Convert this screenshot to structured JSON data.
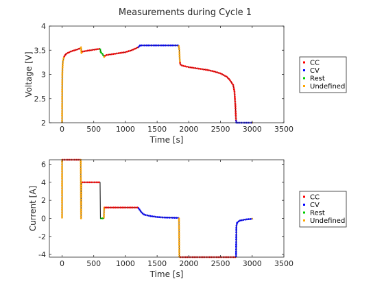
{
  "title": "Measurements during Cycle 1",
  "legend": {
    "entries": [
      {
        "label": "CC",
        "color": "#ff0000"
      },
      {
        "label": "CV",
        "color": "#0000ff"
      },
      {
        "label": "Rest",
        "color": "#00cc00"
      },
      {
        "label": "Undefined",
        "color": "#ffa500"
      }
    ],
    "placement": "right"
  },
  "chart_data": [
    {
      "type": "line",
      "title": "Measurements during Cycle 1",
      "xlabel": "Time [s]",
      "ylabel": "Voltage [V]",
      "xlim": [
        -200,
        3500
      ],
      "ylim": [
        2,
        4
      ],
      "xticks": [
        "0",
        "500",
        "1000",
        "1500",
        "2000",
        "2500",
        "3000",
        "3500"
      ],
      "yticks": [
        "2",
        "2.5",
        "3",
        "3.5",
        "4"
      ],
      "grid": false,
      "legend_placement": "right",
      "trace": {
        "name": "Voltage",
        "color": "#000000",
        "x": [
          0,
          1,
          2,
          4,
          8,
          15,
          30,
          60,
          100,
          150,
          200,
          250,
          290,
          300,
          305,
          315,
          400,
          500,
          600,
          610,
          640,
          660,
          665,
          670,
          700,
          800,
          900,
          1000,
          1100,
          1200,
          1220,
          1230,
          1245,
          1300,
          1400,
          1500,
          1600,
          1700,
          1800,
          1840,
          1850,
          1855,
          1860,
          1870,
          1900,
          2000,
          2100,
          2200,
          2300,
          2400,
          2500,
          2600,
          2650,
          2700,
          2720,
          2735,
          2745,
          2750,
          2800,
          2900,
          3000,
          3010
        ],
        "y": [
          2.0,
          2.3,
          2.7,
          3.0,
          3.15,
          3.28,
          3.36,
          3.42,
          3.45,
          3.48,
          3.5,
          3.52,
          3.54,
          3.56,
          3.44,
          3.47,
          3.49,
          3.51,
          3.53,
          3.46,
          3.42,
          3.37,
          3.36,
          3.38,
          3.4,
          3.42,
          3.44,
          3.46,
          3.5,
          3.56,
          3.58,
          3.6,
          3.6,
          3.6,
          3.6,
          3.6,
          3.6,
          3.6,
          3.6,
          3.6,
          3.5,
          3.35,
          3.25,
          3.2,
          3.18,
          3.15,
          3.13,
          3.11,
          3.09,
          3.06,
          3.02,
          2.95,
          2.88,
          2.78,
          2.65,
          2.35,
          2.05,
          2.0,
          2.0,
          2.0,
          2.0,
          2.0
        ]
      },
      "segments": [
        {
          "mode": "Undefined",
          "color": "#ffa500",
          "x_range": [
            0,
            30
          ]
        },
        {
          "mode": "CC",
          "color": "#ff0000",
          "x_range": [
            30,
            290
          ]
        },
        {
          "mode": "Undefined",
          "color": "#ffa500",
          "x_range": [
            290,
            315
          ]
        },
        {
          "mode": "CC",
          "color": "#ff0000",
          "x_range": [
            315,
            600
          ]
        },
        {
          "mode": "Rest",
          "color": "#00cc00",
          "x_range": [
            600,
            660
          ]
        },
        {
          "mode": "Undefined",
          "color": "#ffa500",
          "x_range": [
            660,
            670
          ]
        },
        {
          "mode": "CC",
          "color": "#ff0000",
          "x_range": [
            670,
            1200
          ]
        },
        {
          "mode": "CV",
          "color": "#0000ff",
          "x_range": [
            1200,
            1840
          ]
        },
        {
          "mode": "Undefined",
          "color": "#ffa500",
          "x_range": [
            1840,
            1860
          ]
        },
        {
          "mode": "CC",
          "color": "#ff0000",
          "x_range": [
            1860,
            2745
          ]
        },
        {
          "mode": "CV",
          "color": "#0000ff",
          "x_range": [
            2745,
            3000
          ]
        },
        {
          "mode": "Undefined",
          "color": "#ffa500",
          "x_range": [
            3000,
            3010
          ]
        }
      ]
    },
    {
      "type": "line",
      "xlabel": "Time [s]",
      "ylabel": "Current [A]",
      "xlim": [
        -200,
        3500
      ],
      "ylim": [
        -4.3,
        6.5
      ],
      "xticks": [
        "0",
        "500",
        "1000",
        "1500",
        "2000",
        "2500",
        "3000",
        "3500"
      ],
      "yticks": [
        "-4",
        "-2",
        "0",
        "2",
        "4",
        "6"
      ],
      "grid": false,
      "legend_placement": "right",
      "trace": {
        "name": "Current",
        "color": "#000000",
        "x": [
          0,
          0.5,
          1,
          30,
          290,
          295,
          300,
          305,
          310,
          315,
          600,
          605,
          655,
          660,
          665,
          670,
          1200,
          1230,
          1260,
          1300,
          1400,
          1500,
          1600,
          1700,
          1840,
          1845,
          1850,
          1855,
          1860,
          1870,
          2740,
          2745,
          2750,
          2760,
          2800,
          2900,
          3000,
          3010
        ],
        "y": [
          0.0,
          6.5,
          6.5,
          6.5,
          6.5,
          6.5,
          0.0,
          4.0,
          4.0,
          4.0,
          4.0,
          0.0,
          0.0,
          0.0,
          1.2,
          1.2,
          1.2,
          0.9,
          0.6,
          0.4,
          0.25,
          0.15,
          0.1,
          0.08,
          0.05,
          0.0,
          -4.3,
          -4.3,
          -4.3,
          -4.3,
          -4.3,
          -4.3,
          -0.9,
          -0.5,
          -0.25,
          -0.12,
          -0.05,
          0.0
        ]
      },
      "segments": [
        {
          "mode": "Undefined",
          "color": "#ffa500",
          "x_range": [
            0,
            1
          ]
        },
        {
          "mode": "CC",
          "color": "#ff0000",
          "x_range": [
            1,
            290
          ]
        },
        {
          "mode": "Undefined",
          "color": "#ffa500",
          "x_range": [
            290,
            315
          ]
        },
        {
          "mode": "CC",
          "color": "#ff0000",
          "x_range": [
            315,
            600
          ]
        },
        {
          "mode": "Rest",
          "color": "#00cc00",
          "x_range": [
            605,
            660
          ]
        },
        {
          "mode": "Undefined",
          "color": "#ffa500",
          "x_range": [
            660,
            670
          ]
        },
        {
          "mode": "CC",
          "color": "#ff0000",
          "x_range": [
            670,
            1200
          ]
        },
        {
          "mode": "CV",
          "color": "#0000ff",
          "x_range": [
            1200,
            1840
          ]
        },
        {
          "mode": "Undefined",
          "color": "#ffa500",
          "x_range": [
            1840,
            1860
          ]
        },
        {
          "mode": "CC",
          "color": "#ff0000",
          "x_range": [
            1860,
            2745
          ]
        },
        {
          "mode": "CV",
          "color": "#0000ff",
          "x_range": [
            2745,
            3000
          ]
        },
        {
          "mode": "Undefined",
          "color": "#ffa500",
          "x_range": [
            3000,
            3010
          ]
        }
      ]
    }
  ]
}
